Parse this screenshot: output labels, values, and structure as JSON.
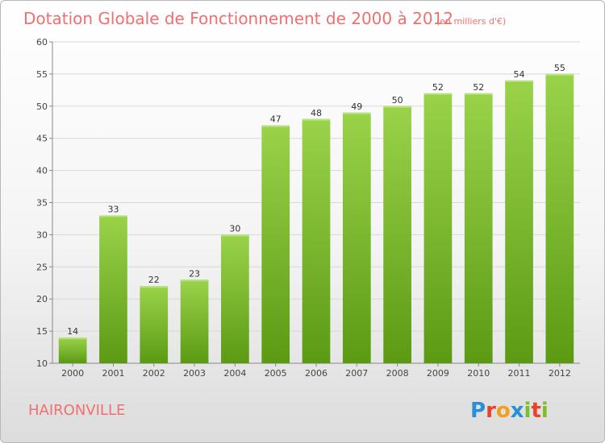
{
  "chart_data": {
    "type": "bar",
    "title": "Dotation Globale de Fonctionnement de 2000 à 2012",
    "subtitle": "(en milliers d'€)",
    "categories": [
      "2000",
      "2001",
      "2002",
      "2003",
      "2004",
      "2005",
      "2006",
      "2007",
      "2008",
      "2009",
      "2010",
      "2011",
      "2012"
    ],
    "values": [
      14,
      33,
      22,
      23,
      30,
      47,
      48,
      49,
      50,
      52,
      52,
      54,
      55
    ],
    "xlabel": "",
    "ylabel": "",
    "ylim": [
      10,
      60
    ],
    "yticks": [
      "10",
      "15",
      "20",
      "25",
      "30",
      "35",
      "40",
      "45",
      "50",
      "55",
      "60"
    ],
    "grid": true,
    "bar_color": "#7cbf2a",
    "commune": "HAIRONVILLE"
  },
  "branding": {
    "logo_text": "Proxiti",
    "letters": [
      "P",
      "r",
      "o",
      "x",
      "i",
      "t",
      "i"
    ],
    "colors": [
      "#2a8fd6",
      "#e8442b",
      "#f0a01e",
      "#2a8fd6",
      "#7cbf2a",
      "#e8442b",
      "#7cbf2a"
    ]
  }
}
